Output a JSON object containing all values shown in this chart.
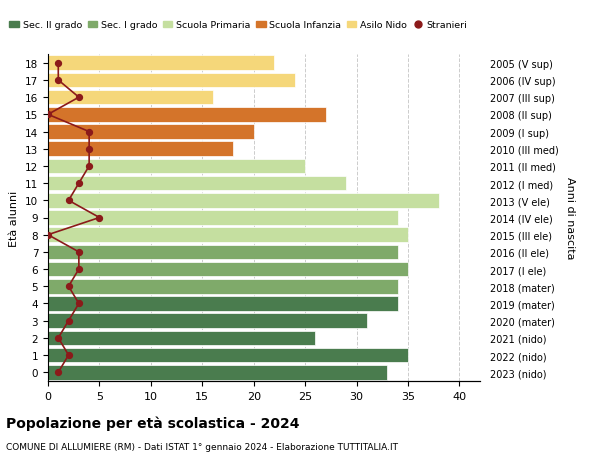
{
  "ages": [
    18,
    17,
    16,
    15,
    14,
    13,
    12,
    11,
    10,
    9,
    8,
    7,
    6,
    5,
    4,
    3,
    2,
    1,
    0
  ],
  "years": [
    "2005 (V sup)",
    "2006 (IV sup)",
    "2007 (III sup)",
    "2008 (II sup)",
    "2009 (I sup)",
    "2010 (III med)",
    "2011 (II med)",
    "2012 (I med)",
    "2013 (V ele)",
    "2014 (IV ele)",
    "2015 (III ele)",
    "2016 (II ele)",
    "2017 (I ele)",
    "2018 (mater)",
    "2019 (mater)",
    "2020 (mater)",
    "2021 (nido)",
    "2022 (nido)",
    "2023 (nido)"
  ],
  "bar_values": [
    33,
    35,
    26,
    31,
    34,
    34,
    35,
    34,
    35,
    34,
    38,
    29,
    25,
    18,
    20,
    27,
    16,
    24,
    22
  ],
  "bar_colors": [
    "#4a7c4e",
    "#4a7c4e",
    "#4a7c4e",
    "#4a7c4e",
    "#4a7c4e",
    "#7faa6a",
    "#7faa6a",
    "#7faa6a",
    "#c5dfa0",
    "#c5dfa0",
    "#c5dfa0",
    "#c5dfa0",
    "#c5dfa0",
    "#d4742a",
    "#d4742a",
    "#d4742a",
    "#f5d77a",
    "#f5d77a",
    "#f5d77a"
  ],
  "stranieri_values": [
    1,
    2,
    1,
    2,
    3,
    2,
    3,
    3,
    0,
    5,
    2,
    3,
    4,
    4,
    4,
    0,
    3,
    1,
    1
  ],
  "stranieri_color": "#8b1a1a",
  "legend_labels": [
    "Sec. II grado",
    "Sec. I grado",
    "Scuola Primaria",
    "Scuola Infanzia",
    "Asilo Nido",
    "Stranieri"
  ],
  "legend_colors": [
    "#4a7c4e",
    "#7faa6a",
    "#c5dfa0",
    "#d4742a",
    "#f5d77a",
    "#8b1a1a"
  ],
  "ylabel": "Età alunni",
  "right_ylabel": "Anni di nascita",
  "title": "Popolazione per età scolastica - 2024",
  "subtitle": "COMUNE DI ALLUMIERE (RM) - Dati ISTAT 1° gennaio 2024 - Elaborazione TUTTITALIA.IT",
  "xlim": [
    0,
    42
  ],
  "background_color": "#ffffff",
  "grid_color": "#cccccc"
}
